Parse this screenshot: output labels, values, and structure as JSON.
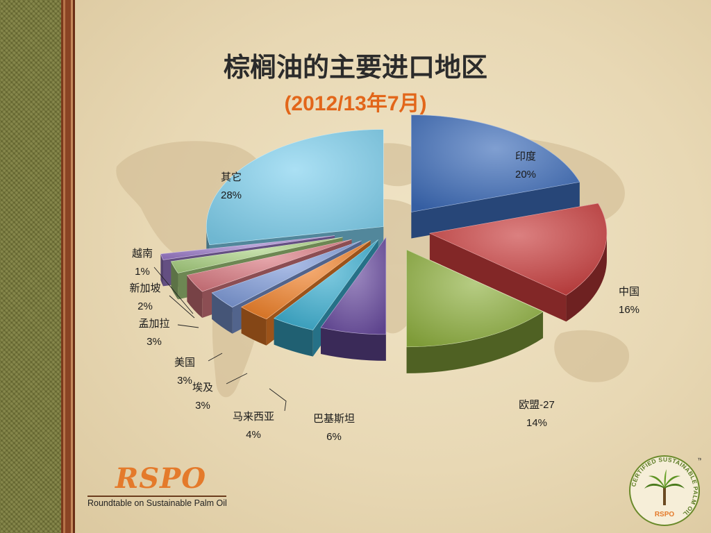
{
  "slide": {
    "title": "棕榈油的主要进口地区",
    "subtitle": "(2012/13年7月)"
  },
  "colors": {
    "india": "#3c6bb8",
    "china": "#c83c3c",
    "eu": "#8fb040",
    "pakistan": "#6a4ca0",
    "malaysia": "#3aaed0",
    "egypt": "#f08028",
    "usa": "#7e9ad8",
    "bangladesh": "#d87880",
    "singapore": "#a8d080",
    "vietnam": "#9a7ac8",
    "others": "#7ed0ee",
    "title_accent": "#e2661a"
  },
  "chart_data": {
    "type": "pie",
    "title": "棕榈油的主要进口地区",
    "subtitle": "(2012/13年7月)",
    "slices": [
      {
        "key": "india",
        "label": "印度",
        "pct_label": "20%",
        "value": 20
      },
      {
        "key": "china",
        "label": "中国",
        "pct_label": "16%",
        "value": 16
      },
      {
        "key": "eu",
        "label": "欧盟-27",
        "pct_label": "14%",
        "value": 14
      },
      {
        "key": "pakistan",
        "label": "巴基斯坦",
        "pct_label": "6%",
        "value": 6
      },
      {
        "key": "malaysia",
        "label": "马来西亚",
        "pct_label": "4%",
        "value": 4
      },
      {
        "key": "egypt",
        "label": "埃及",
        "pct_label": "3%",
        "value": 3
      },
      {
        "key": "usa",
        "label": "美国",
        "pct_label": "3%",
        "value": 3
      },
      {
        "key": "bangladesh",
        "label": "孟加拉",
        "pct_label": "3%",
        "value": 3
      },
      {
        "key": "singapore",
        "label": "新加坡",
        "pct_label": "2%",
        "value": 2
      },
      {
        "key": "vietnam",
        "label": "越南",
        "pct_label": "1%",
        "value": 1
      },
      {
        "key": "others",
        "label": "其它",
        "pct_label": "28%",
        "value": 28
      }
    ]
  },
  "footer": {
    "rspo_word": "RSPO",
    "rspo_tagline": "Roundtable on Sustainable Palm Oil",
    "cert_text": "CERTIFIED SUSTAINABLE PALM OIL",
    "cert_tm": "™",
    "cert_brand": "RSPO"
  }
}
